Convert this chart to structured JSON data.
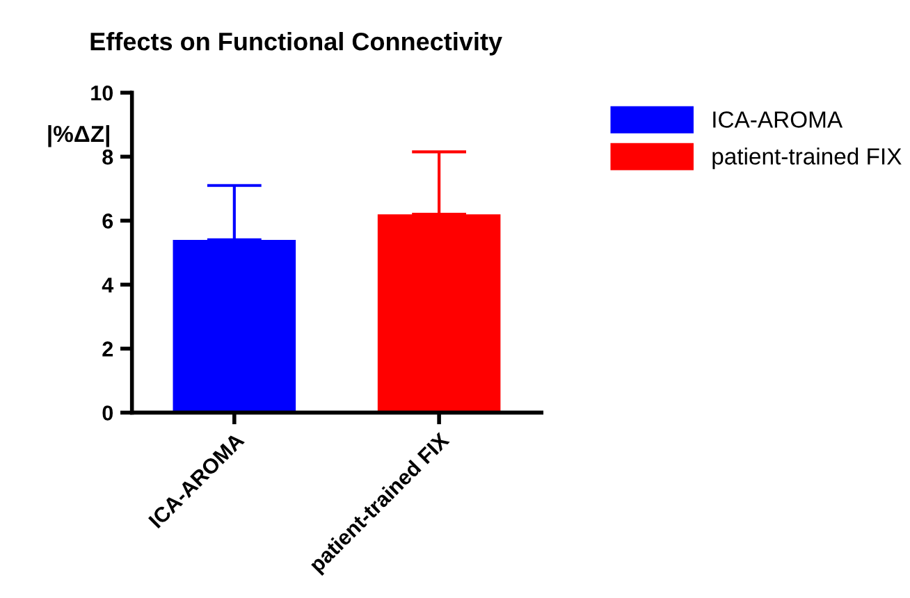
{
  "chart_data": {
    "type": "bar",
    "title": "Effects on Functional Connectivity",
    "ylabel": "|%ΔZ|",
    "categories": [
      "ICA-AROMA",
      "patient-trained FIX"
    ],
    "series": [
      {
        "name": "ICA-AROMA",
        "color": "#0000ff",
        "values": [
          5.4,
          null
        ],
        "errors": [
          [
            5.4,
            7.1
          ],
          null
        ]
      },
      {
        "name": "patient-trained FIX",
        "color": "#ff0000",
        "values": [
          null,
          6.2
        ],
        "errors": [
          null,
          [
            6.2,
            8.15
          ]
        ]
      }
    ],
    "ylim": [
      0,
      10
    ],
    "yticks": [
      0,
      2,
      4,
      6,
      8,
      10
    ],
    "grid": false,
    "legend": "top right"
  }
}
